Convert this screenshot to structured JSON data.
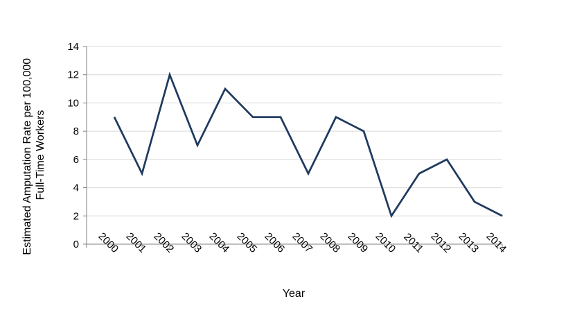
{
  "chart_data": {
    "type": "line",
    "title": "",
    "xlabel": "Year",
    "ylabel_lines": [
      "Estimated Amputation Rate per 100,000",
      "Full-Time Workers"
    ],
    "categories": [
      "2000",
      "2001",
      "2002",
      "2003",
      "2004",
      "2005",
      "2006",
      "2007",
      "2008",
      "2009",
      "2010",
      "2011",
      "2012",
      "2013",
      "2014"
    ],
    "series": [
      {
        "values": [
          9,
          5,
          12,
          7,
          11,
          9,
          9,
          5,
          9,
          8,
          2,
          5,
          6,
          3,
          2
        ]
      }
    ],
    "ylim": [
      0,
      14
    ],
    "yticks": [
      "0",
      "2",
      "4",
      "6",
      "8",
      "10",
      "12",
      "14"
    ],
    "grid": true,
    "legend": "none",
    "line_color": "#1f3a5f"
  }
}
